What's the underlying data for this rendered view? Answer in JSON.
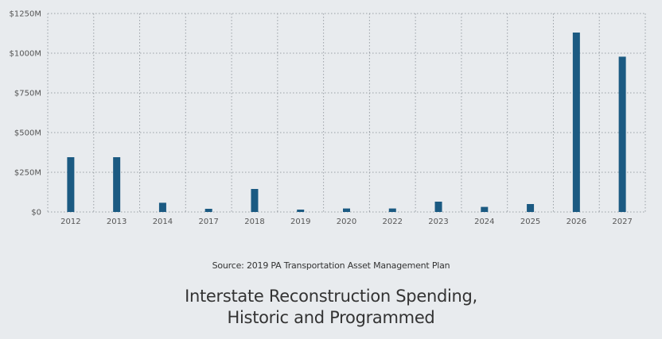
{
  "chart_data": {
    "type": "bar",
    "categories": [
      "2012",
      "2013",
      "2014",
      "2017",
      "2018",
      "2019",
      "2020",
      "2022",
      "2023",
      "2024",
      "2025",
      "2026",
      "2027"
    ],
    "values": [
      345,
      345,
      58,
      20,
      145,
      15,
      22,
      22,
      65,
      32,
      50,
      1130,
      978
    ],
    "ylim": [
      0,
      1250
    ],
    "yticks": [
      0,
      250,
      500,
      750,
      1000,
      1250
    ],
    "ytick_labels": [
      "$0",
      "$250M",
      "$500M",
      "$750M",
      "$1000M",
      "$1250M"
    ],
    "grid": true,
    "bar_color": "#1b5a82",
    "grid_color": "#9aa0a6"
  },
  "source": "Source: 2019 PA Transportation Asset Management Plan",
  "title_lines": [
    "Interstate Reconstruction Spending,",
    "Historic and Programmed"
  ]
}
